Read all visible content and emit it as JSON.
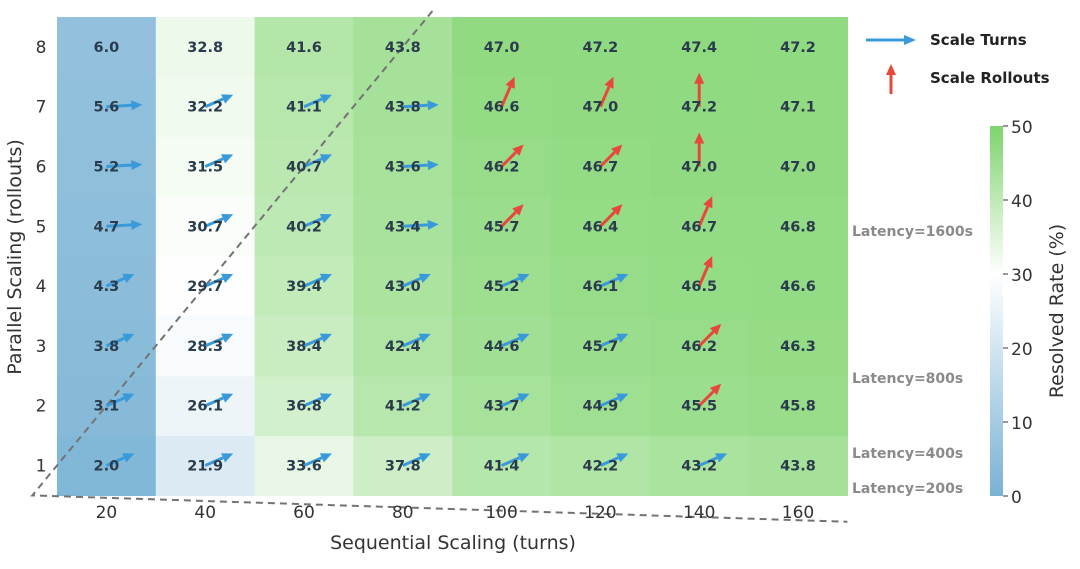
{
  "chart_data": {
    "type": "heatmap",
    "title": "",
    "xlabel": "Sequential Scaling (turns)",
    "ylabel": "Parallel Scaling (rollouts)",
    "x": [
      "20",
      "40",
      "60",
      "80",
      "100",
      "120",
      "140",
      "160"
    ],
    "y": [
      "1",
      "2",
      "3",
      "4",
      "5",
      "6",
      "7",
      "8"
    ],
    "values": [
      [
        "2.0",
        "21.9",
        "33.6",
        "37.8",
        "41.4",
        "42.2",
        "43.2",
        "43.8"
      ],
      [
        "3.1",
        "26.1",
        "36.8",
        "41.2",
        "43.7",
        "44.9",
        "45.5",
        "45.8"
      ],
      [
        "3.8",
        "28.3",
        "38.4",
        "42.4",
        "44.6",
        "45.7",
        "46.2",
        "46.3"
      ],
      [
        "4.3",
        "29.7",
        "39.4",
        "43.0",
        "45.2",
        "46.1",
        "46.5",
        "46.6"
      ],
      [
        "4.7",
        "30.7",
        "40.2",
        "43.4",
        "45.7",
        "46.4",
        "46.7",
        "46.8"
      ],
      [
        "5.2",
        "31.5",
        "40.7",
        "43.6",
        "46.2",
        "46.7",
        "47.0",
        "47.0"
      ],
      [
        "5.6",
        "32.2",
        "41.1",
        "43.8",
        "46.6",
        "47.0",
        "47.2",
        "47.1"
      ],
      [
        "6.0",
        "32.8",
        "41.6",
        "43.8",
        "47.0",
        "47.2",
        "47.4",
        "47.2"
      ]
    ],
    "arrows": [
      [
        "diag",
        "diag",
        "diag",
        "diag",
        "diag",
        "diag",
        "diag",
        "none"
      ],
      [
        "diag",
        "diag",
        "diag",
        "diag",
        "diag",
        "diag",
        "rdiag",
        "none"
      ],
      [
        "diag",
        "diag",
        "diag",
        "diag",
        "diag",
        "diag",
        "rdiag",
        "none"
      ],
      [
        "diag",
        "diag",
        "diag",
        "diag",
        "diag",
        "diag",
        "rsteep",
        "none"
      ],
      [
        "flat",
        "diag",
        "diag",
        "flat",
        "rdiag",
        "rdiag",
        "rsteep",
        "none"
      ],
      [
        "flat",
        "diag",
        "diag",
        "flat",
        "rdiag",
        "rdiag",
        "rup",
        "none"
      ],
      [
        "flat",
        "diag",
        "diag",
        "flat",
        "rsteep",
        "rsteep",
        "rup",
        "none"
      ],
      [
        "none",
        "none",
        "none",
        "none",
        "none",
        "none",
        "none",
        "none"
      ]
    ],
    "legend": [
      {
        "label": "Scale Turns",
        "color": "#3a9ad9",
        "direction": "right"
      },
      {
        "label": "Scale Rollouts",
        "color": "#e8473b",
        "direction": "up"
      }
    ],
    "colorbar": {
      "label": "Resolved Rate (%)",
      "range": [
        0,
        50
      ],
      "ticks": [
        "0",
        "10",
        "20",
        "30",
        "40",
        "50"
      ],
      "colors": [
        "#78b2d4",
        "#ffffff",
        "#7ed46c"
      ]
    },
    "latency_curves": [
      {
        "label": "Latency=200s",
        "value": 200
      },
      {
        "label": "Latency=400s",
        "value": 400
      },
      {
        "label": "Latency=800s",
        "value": 800
      },
      {
        "label": "Latency=1600s",
        "value": 1600
      }
    ]
  }
}
